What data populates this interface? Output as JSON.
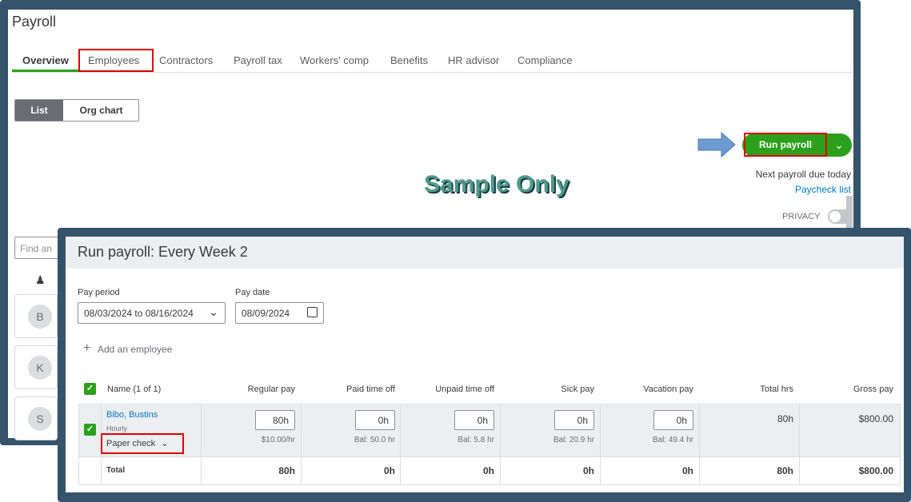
{
  "page": {
    "title": "Payroll"
  },
  "tabs": [
    "Overview",
    "Employees",
    "Contractors",
    "Payroll tax",
    "Workers' comp",
    "Benefits",
    "HR advisor",
    "Compliance"
  ],
  "view_toggle": {
    "list": "List",
    "org_chart": "Org chart"
  },
  "run_payroll": {
    "label": "Run payroll",
    "next_due": "Next payroll due today",
    "paycheck_list": "Paycheck list",
    "privacy": "PRIVACY"
  },
  "watermark": "Sample Only",
  "sidebar": {
    "find_placeholder": "Find an",
    "avatars": [
      "B",
      "K",
      "S"
    ]
  },
  "dialog": {
    "title": "Run payroll: Every Week 2",
    "pay_period_label": "Pay period",
    "pay_period_value": "08/03/2024 to 08/16/2024",
    "pay_date_label": "Pay date",
    "pay_date_value": "08/09/2024",
    "add_employee": "Add an employee",
    "columns": [
      "Name (1 of 1)",
      "Regular pay",
      "Paid time off",
      "Unpaid time off",
      "Sick pay",
      "Vacation pay",
      "Total hrs",
      "Gross pay"
    ],
    "row": {
      "name": "Bibo, Bustins",
      "type": "Hourly",
      "payment_method": "Paper check",
      "inputs": [
        "80h",
        "0h",
        "0h",
        "0h",
        "0h"
      ],
      "notes": [
        "$10.00/hr",
        "Bal: 50.0 hr",
        "Bal: 5.8 hr",
        "Bal: 20.9 hr",
        "Bal: 49.4 hr"
      ],
      "total_hrs": "80h",
      "gross_pay": "$800.00"
    },
    "total": {
      "label": "Total",
      "values": [
        "80h",
        "0h",
        "0h",
        "0h",
        "0h",
        "80h",
        "$800.00"
      ]
    }
  },
  "colors": {
    "frame": "#35536b",
    "accent_green": "#2ca01c",
    "highlight_red": "#e00000",
    "link": "#0077c5"
  }
}
